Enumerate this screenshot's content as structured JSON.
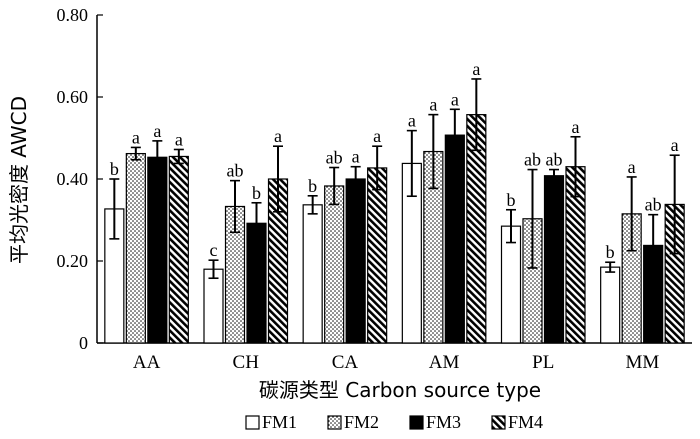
{
  "chart_data": {
    "type": "bar",
    "ylabel": "平均光密度 AWCD",
    "xlabel": "碳源类型 Carbon source type",
    "ylim": [
      0,
      0.8
    ],
    "yticks": [
      "0",
      "0.20",
      "0.40",
      "0.60",
      "0.80"
    ],
    "categories": [
      "AA",
      "CH",
      "CA",
      "AM",
      "PL",
      "MM"
    ],
    "series": [
      {
        "name": "FM1",
        "fill": "white",
        "values": [
          0.327,
          0.18,
          0.337,
          0.438,
          0.285,
          0.185
        ],
        "errors": [
          0.073,
          0.022,
          0.022,
          0.08,
          0.04,
          0.012
        ],
        "letters": [
          "b",
          "c",
          "b",
          "a",
          "b",
          "b"
        ]
      },
      {
        "name": "FM2",
        "fill": "dots",
        "values": [
          0.462,
          0.333,
          0.383,
          0.467,
          0.303,
          0.315
        ],
        "errors": [
          0.015,
          0.063,
          0.045,
          0.09,
          0.12,
          0.09
        ],
        "letters": [
          "a",
          "ab",
          "ab",
          "a",
          "ab",
          "a"
        ]
      },
      {
        "name": "FM3",
        "fill": "black",
        "values": [
          0.453,
          0.292,
          0.4,
          0.507,
          0.408,
          0.238
        ],
        "errors": [
          0.04,
          0.05,
          0.03,
          0.063,
          0.015,
          0.075
        ],
        "letters": [
          "a",
          "b",
          "a",
          "a",
          "ab",
          "ab"
        ]
      },
      {
        "name": "FM4",
        "fill": "hatch",
        "values": [
          0.455,
          0.4,
          0.427,
          0.557,
          0.43,
          0.338
        ],
        "errors": [
          0.017,
          0.08,
          0.053,
          0.087,
          0.073,
          0.12
        ],
        "letters": [
          "a",
          "a",
          "a",
          "a",
          "a",
          "a"
        ]
      }
    ],
    "legend": {
      "position": "bottom",
      "labels": [
        "FM1",
        "FM2",
        "FM3",
        "FM4"
      ]
    },
    "grid": false
  }
}
